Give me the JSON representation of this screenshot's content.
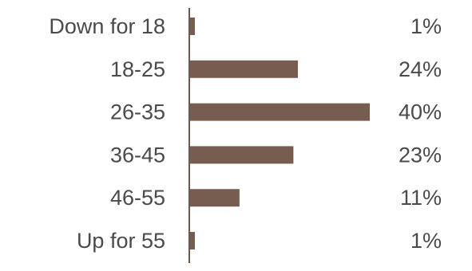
{
  "chart_data": {
    "type": "bar",
    "orientation": "horizontal",
    "categories": [
      "Down for 18",
      "18-25",
      "26-35",
      "36-45",
      "46-55",
      "Up for 55"
    ],
    "values": [
      1,
      24,
      40,
      23,
      11,
      1
    ],
    "value_labels": [
      "1%",
      "24%",
      "40%",
      "23%",
      "11%",
      "1%"
    ],
    "unit": "%",
    "xlim": [
      0,
      40
    ],
    "grid": false,
    "bar_color": "#765d4f",
    "axis_color": "#6b5a50",
    "text_color": "#4a4a4a"
  }
}
